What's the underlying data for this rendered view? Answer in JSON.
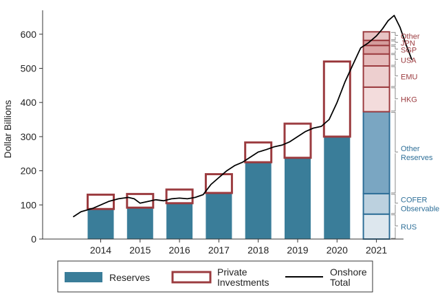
{
  "chart_data": {
    "type": "bar",
    "ylabel": "Dollar Billions",
    "ylim": [
      0,
      670
    ],
    "yticks": [
      0,
      100,
      200,
      300,
      400,
      500,
      600
    ],
    "categories": [
      "2014",
      "2015",
      "2016",
      "2017",
      "2018",
      "2019",
      "2020"
    ],
    "series": [
      {
        "name": "Reserves",
        "values": [
          88,
          92,
          105,
          135,
          225,
          238,
          300
        ]
      },
      {
        "name": "Private Investments",
        "values": [
          42,
          40,
          40,
          55,
          58,
          100,
          220
        ]
      }
    ],
    "breakdown_2021": {
      "category": "2021",
      "segments": [
        {
          "label": "RUS",
          "group": "reserves",
          "value": 73
        },
        {
          "label": "COFER Observable",
          "group": "reserves",
          "value": 60
        },
        {
          "label": "Other Reserves",
          "group": "reserves",
          "value": 240
        },
        {
          "label": "HKG",
          "group": "private",
          "value": 72
        },
        {
          "label": "EMU",
          "group": "private",
          "value": 62
        },
        {
          "label": "USA",
          "group": "private",
          "value": 35
        },
        {
          "label": "SGP",
          "group": "private",
          "value": 25
        },
        {
          "label": "JPN",
          "group": "private",
          "value": 15
        },
        {
          "label": "Other",
          "group": "private",
          "value": 25
        }
      ]
    },
    "onshore_total": {
      "name": "Onshore Total",
      "x": [
        2013.3,
        2013.5,
        2013.8,
        2014.0,
        2014.2,
        2014.45,
        2014.7,
        2014.85,
        2015.0,
        2015.2,
        2015.4,
        2015.6,
        2015.8,
        2016.0,
        2016.2,
        2016.4,
        2016.6,
        2016.8,
        2017.0,
        2017.2,
        2017.4,
        2017.6,
        2017.8,
        2018.0,
        2018.2,
        2018.4,
        2018.6,
        2018.8,
        2019.0,
        2019.2,
        2019.4,
        2019.6,
        2019.8,
        2020.0,
        2020.2,
        2020.4,
        2020.6,
        2020.8,
        2021.0,
        2021.15,
        2021.3,
        2021.45,
        2021.6,
        2021.75,
        2021.9
      ],
      "y": [
        65,
        80,
        90,
        100,
        110,
        118,
        122,
        118,
        105,
        110,
        115,
        112,
        118,
        120,
        118,
        122,
        130,
        160,
        180,
        200,
        215,
        225,
        240,
        255,
        262,
        270,
        275,
        285,
        300,
        315,
        325,
        330,
        350,
        400,
        460,
        510,
        560,
        575,
        595,
        615,
        640,
        655,
        620,
        570,
        525
      ]
    },
    "legend": [
      "Reserves",
      "Private Investments",
      "Onshore Total"
    ],
    "legend_position": "bottom",
    "grid": false,
    "colors": {
      "reserves": "#3a7d99",
      "private_outline": "#9b3b3f",
      "line": "#000000",
      "reserves_text": "#2e6f98",
      "private_text": "#9b3b3f",
      "rus": "#dde7ee",
      "cofer": "#bcd1df",
      "other_reserves": "#7aa6c2",
      "hkg": "#f3dcdc",
      "emu": "#edcfcf",
      "usa": "#e6bcbc",
      "sgp": "#dca6a6",
      "jpn": "#d49c9c",
      "other_private": "#e8c4c4"
    }
  }
}
